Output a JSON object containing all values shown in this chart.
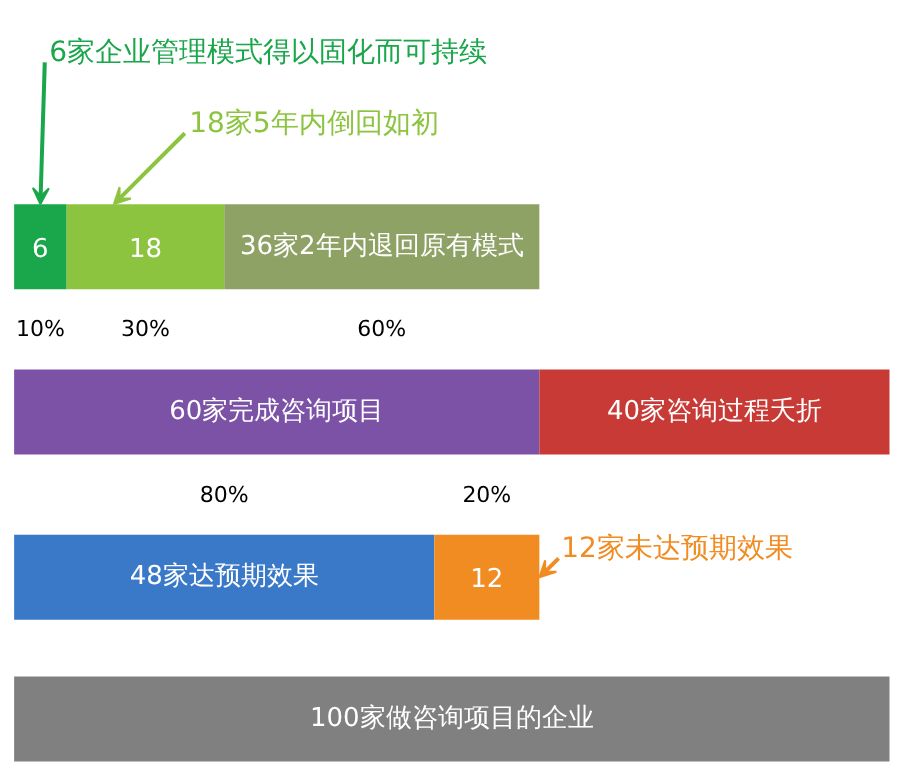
{
  "chart_data": {
    "type": "bar",
    "orientation": "horizontal",
    "stacked": true,
    "categories": [
      null,
      null,
      null,
      null
    ],
    "series": [
      {
        "colors": [
          "#1aa64a",
          "#7b52a6",
          "#3a78c8",
          "#808080"
        ],
        "values": [
          6,
          60,
          48,
          100
        ],
        "value_labels": [
          "6",
          "60家完成咨询项目",
          "48家达预期效果",
          "100家做咨询项目的企业"
        ]
      },
      {
        "colors": [
          "#8cc43f",
          "#c83a36",
          "#f08c22",
          null
        ],
        "values": [
          18,
          40,
          12,
          null
        ],
        "value_labels": [
          "18",
          "40家咨询过程夭折",
          "12",
          null
        ]
      },
      {
        "colors": [
          "#8fa266",
          null,
          null,
          null
        ],
        "values": [
          36,
          null,
          null,
          null
        ],
        "value_labels": [
          "36家2年内退回原有模式",
          null,
          null,
          null
        ]
      }
    ],
    "annotations": [
      "6家企业管理模式得以固化而可持续",
      "18家5年内倒回如初",
      "12家未达预期效果",
      "10%",
      "30%",
      "60%",
      "80%",
      "20%"
    ]
  }
}
